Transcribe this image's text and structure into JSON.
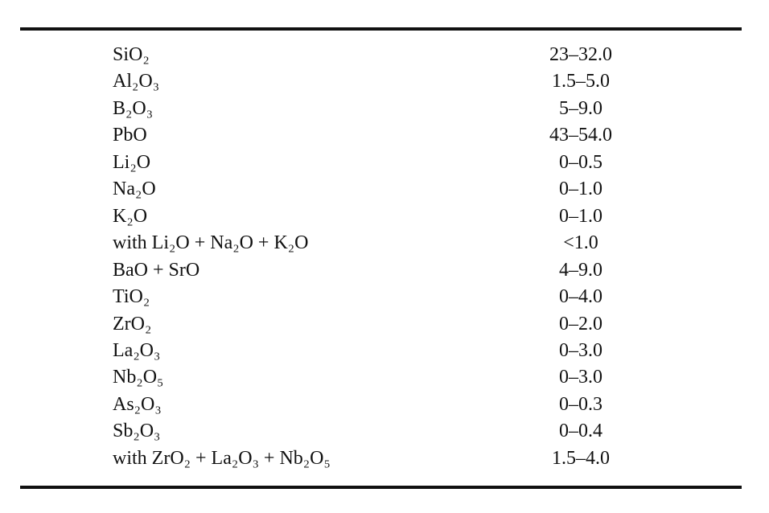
{
  "table": {
    "rows": [
      [
        "SiO₂",
        "23–32.0"
      ],
      [
        "Al₂O₃",
        "1.5–5.0"
      ],
      [
        "B₂O₃",
        "5–9.0"
      ],
      [
        "PbO",
        "43–54.0"
      ],
      [
        "Li₂O",
        "0–0.5"
      ],
      [
        "Na₂O",
        "0–1.0"
      ],
      [
        "K₂O",
        "0–1.0"
      ],
      [
        "with Li₂O + Na₂O + K₂O",
        "<1.0"
      ],
      [
        "BaO + SrO",
        "4–9.0"
      ],
      [
        "TiO₂",
        "0–4.0"
      ],
      [
        "ZrO₂",
        "0–2.0"
      ],
      [
        "La₂O₃",
        "0–3.0"
      ],
      [
        "Nb₂O₅",
        "0–3.0"
      ],
      [
        "As₂O₃",
        "0–0.3"
      ],
      [
        "Sb₂O₃",
        "0–0.4"
      ],
      [
        "with ZrO₂ + La₂O₃ + Nb₂O₅",
        "1.5–4.0"
      ]
    ]
  }
}
